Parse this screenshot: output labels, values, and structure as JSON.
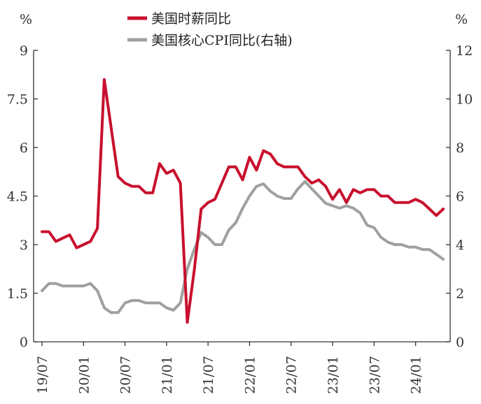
{
  "chart_data": {
    "type": "line",
    "left_unit": "%",
    "right_unit": "%",
    "legend_position": "top-center",
    "grid": false,
    "y_left": {
      "min": 0,
      "max": 9,
      "ticks": [
        "0",
        "1.5",
        "3",
        "4.5",
        "6",
        "7.5",
        "9"
      ]
    },
    "y_right": {
      "min": 0,
      "max": 12,
      "ticks": [
        "0",
        "2",
        "4",
        "6",
        "8",
        "10",
        "12"
      ]
    },
    "x_range": [
      "2019-07",
      "2024-06"
    ],
    "x_ticks": [
      {
        "label": "19/07",
        "date": "2019-07"
      },
      {
        "label": "20/01",
        "date": "2020-01"
      },
      {
        "label": "20/07",
        "date": "2020-07"
      },
      {
        "label": "21/01",
        "date": "2021-01"
      },
      {
        "label": "21/07",
        "date": "2021-07"
      },
      {
        "label": "22/01",
        "date": "2022-01"
      },
      {
        "label": "22/07",
        "date": "2022-07"
      },
      {
        "label": "23/01",
        "date": "2023-01"
      },
      {
        "label": "23/07",
        "date": "2023-07"
      },
      {
        "label": "24/01",
        "date": "2024-01"
      }
    ],
    "series": [
      {
        "name": "美国时薪同比",
        "axis": "left",
        "color": "#c8102e",
        "points": [
          [
            "2019-07",
            3.4
          ],
          [
            "2019-08",
            3.4
          ],
          [
            "2019-09",
            3.1
          ],
          [
            "2019-10",
            3.2
          ],
          [
            "2019-11",
            3.3
          ],
          [
            "2019-12",
            2.9
          ],
          [
            "2020-01",
            3.0
          ],
          [
            "2020-02",
            3.1
          ],
          [
            "2020-03",
            3.5
          ],
          [
            "2020-04",
            8.1
          ],
          [
            "2020-05",
            6.6
          ],
          [
            "2020-06",
            5.1
          ],
          [
            "2020-07",
            4.9
          ],
          [
            "2020-08",
            4.8
          ],
          [
            "2020-09",
            4.8
          ],
          [
            "2020-10",
            4.6
          ],
          [
            "2020-11",
            4.6
          ],
          [
            "2020-12",
            5.5
          ],
          [
            "2021-01",
            5.2
          ],
          [
            "2021-02",
            5.3
          ],
          [
            "2021-03",
            4.9
          ],
          [
            "2021-04",
            0.6
          ],
          [
            "2021-05",
            2.2
          ],
          [
            "2021-06",
            4.1
          ],
          [
            "2021-07",
            4.3
          ],
          [
            "2021-08",
            4.4
          ],
          [
            "2021-09",
            4.9
          ],
          [
            "2021-10",
            5.4
          ],
          [
            "2021-11",
            5.4
          ],
          [
            "2021-12",
            5.0
          ],
          [
            "2022-01",
            5.7
          ],
          [
            "2022-02",
            5.3
          ],
          [
            "2022-03",
            5.9
          ],
          [
            "2022-04",
            5.8
          ],
          [
            "2022-05",
            5.5
          ],
          [
            "2022-06",
            5.4
          ],
          [
            "2022-07",
            5.4
          ],
          [
            "2022-08",
            5.4
          ],
          [
            "2022-09",
            5.1
          ],
          [
            "2022-10",
            4.9
          ],
          [
            "2022-11",
            5.0
          ],
          [
            "2022-12",
            4.8
          ],
          [
            "2023-01",
            4.4
          ],
          [
            "2023-02",
            4.7
          ],
          [
            "2023-03",
            4.3
          ],
          [
            "2023-04",
            4.7
          ],
          [
            "2023-05",
            4.6
          ],
          [
            "2023-06",
            4.7
          ],
          [
            "2023-07",
            4.7
          ],
          [
            "2023-08",
            4.5
          ],
          [
            "2023-09",
            4.5
          ],
          [
            "2023-10",
            4.3
          ],
          [
            "2023-11",
            4.3
          ],
          [
            "2023-12",
            4.3
          ],
          [
            "2024-01",
            4.4
          ],
          [
            "2024-02",
            4.3
          ],
          [
            "2024-03",
            4.1
          ],
          [
            "2024-04",
            3.9
          ],
          [
            "2024-05",
            4.1
          ]
        ]
      },
      {
        "name": "美国核心CPI同比(右轴)",
        "axis": "right",
        "color": "#a0a0a0",
        "points": [
          [
            "2019-07",
            2.1
          ],
          [
            "2019-08",
            2.4
          ],
          [
            "2019-09",
            2.4
          ],
          [
            "2019-10",
            2.3
          ],
          [
            "2019-11",
            2.3
          ],
          [
            "2019-12",
            2.3
          ],
          [
            "2020-01",
            2.3
          ],
          [
            "2020-02",
            2.4
          ],
          [
            "2020-03",
            2.1
          ],
          [
            "2020-04",
            1.4
          ],
          [
            "2020-05",
            1.2
          ],
          [
            "2020-06",
            1.2
          ],
          [
            "2020-07",
            1.6
          ],
          [
            "2020-08",
            1.7
          ],
          [
            "2020-09",
            1.7
          ],
          [
            "2020-10",
            1.6
          ],
          [
            "2020-11",
            1.6
          ],
          [
            "2020-12",
            1.6
          ],
          [
            "2021-01",
            1.4
          ],
          [
            "2021-02",
            1.3
          ],
          [
            "2021-03",
            1.6
          ],
          [
            "2021-04",
            3.0
          ],
          [
            "2021-05",
            3.8
          ],
          [
            "2021-06",
            4.5
          ],
          [
            "2021-07",
            4.3
          ],
          [
            "2021-08",
            4.0
          ],
          [
            "2021-09",
            4.0
          ],
          [
            "2021-10",
            4.6
          ],
          [
            "2021-11",
            4.9
          ],
          [
            "2021-12",
            5.5
          ],
          [
            "2022-01",
            6.0
          ],
          [
            "2022-02",
            6.4
          ],
          [
            "2022-03",
            6.5
          ],
          [
            "2022-04",
            6.2
          ],
          [
            "2022-05",
            6.0
          ],
          [
            "2022-06",
            5.9
          ],
          [
            "2022-07",
            5.9
          ],
          [
            "2022-08",
            6.3
          ],
          [
            "2022-09",
            6.6
          ],
          [
            "2022-10",
            6.3
          ],
          [
            "2022-11",
            6.0
          ],
          [
            "2022-12",
            5.7
          ],
          [
            "2023-01",
            5.6
          ],
          [
            "2023-02",
            5.5
          ],
          [
            "2023-03",
            5.6
          ],
          [
            "2023-04",
            5.5
          ],
          [
            "2023-05",
            5.3
          ],
          [
            "2023-06",
            4.8
          ],
          [
            "2023-07",
            4.7
          ],
          [
            "2023-08",
            4.3
          ],
          [
            "2023-09",
            4.1
          ],
          [
            "2023-10",
            4.0
          ],
          [
            "2023-11",
            4.0
          ],
          [
            "2023-12",
            3.9
          ],
          [
            "2024-01",
            3.9
          ],
          [
            "2024-02",
            3.8
          ],
          [
            "2024-03",
            3.8
          ],
          [
            "2024-04",
            3.6
          ],
          [
            "2024-05",
            3.4
          ]
        ]
      }
    ]
  }
}
